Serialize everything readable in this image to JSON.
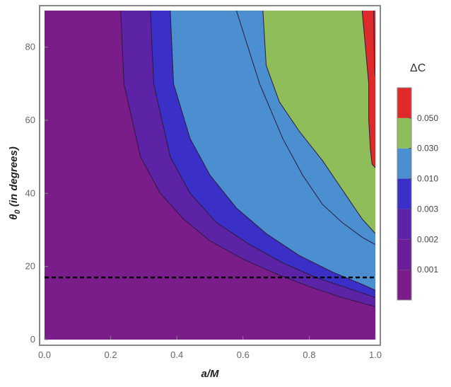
{
  "chart_data": {
    "type": "heatmap",
    "title": "",
    "xlabel": "a/M",
    "ylabel": "θ0 (in degrees)",
    "xlim": [
      0,
      1
    ],
    "ylim": [
      0,
      90
    ],
    "x_ticks": [
      "0.0",
      "0.2",
      "0.4",
      "0.6",
      "0.8",
      "1.0"
    ],
    "y_ticks": [
      "0",
      "20",
      "40",
      "60",
      "80"
    ],
    "legend": {
      "title": "ΔC",
      "placement": "right",
      "levels": [
        "0.001",
        "0.002",
        "0.003",
        "0.010",
        "0.030",
        "0.050"
      ],
      "band_colors": [
        "#7b1c8b",
        "#6a1d98",
        "#5d23a6",
        "#3a2fc6",
        "#4b8fd0",
        "#8fbd5a",
        "#de2a2a"
      ]
    },
    "reference_line": {
      "y": 17,
      "style": "dashed"
    },
    "contours": [
      {
        "level": "0.001",
        "points": [
          [
            0.58,
            90
          ],
          [
            0.65,
            70
          ],
          [
            0.72,
            55
          ],
          [
            0.78,
            45
          ],
          [
            0.84,
            37
          ],
          [
            0.9,
            32
          ],
          [
            0.96,
            28
          ],
          [
            1.0,
            26
          ]
        ]
      },
      {
        "level": "0.002",
        "points": [
          [
            0.23,
            90
          ],
          [
            0.24,
            70
          ],
          [
            0.29,
            50
          ],
          [
            0.35,
            40
          ],
          [
            0.42,
            33
          ],
          [
            0.5,
            27
          ],
          [
            0.6,
            22
          ],
          [
            0.7,
            18
          ],
          [
            0.8,
            14.5
          ],
          [
            0.9,
            11.5
          ],
          [
            1.0,
            9
          ]
        ]
      },
      {
        "level": "0.003",
        "points": [
          [
            0.32,
            90
          ],
          [
            0.33,
            70
          ],
          [
            0.38,
            50
          ],
          [
            0.44,
            40
          ],
          [
            0.52,
            32
          ],
          [
            0.62,
            26
          ],
          [
            0.72,
            21
          ],
          [
            0.82,
            17
          ],
          [
            0.92,
            14
          ],
          [
            1.0,
            11.5
          ]
        ]
      },
      {
        "level": "0.010",
        "points": [
          [
            0.38,
            90
          ],
          [
            0.39,
            70
          ],
          [
            0.44,
            55
          ],
          [
            0.5,
            45
          ],
          [
            0.58,
            36
          ],
          [
            0.67,
            29
          ],
          [
            0.77,
            23
          ],
          [
            0.87,
            18.5
          ],
          [
            0.95,
            15.5
          ],
          [
            1.0,
            13.5
          ]
        ]
      },
      {
        "level": "0.030",
        "points": [
          [
            0.66,
            90
          ],
          [
            0.67,
            75
          ],
          [
            0.71,
            65
          ],
          [
            0.77,
            57
          ],
          [
            0.84,
            49
          ],
          [
            0.9,
            41
          ],
          [
            0.96,
            33
          ],
          [
            1.0,
            29
          ]
        ]
      },
      {
        "level": "0.050",
        "points": [
          [
            0.96,
            90
          ],
          [
            0.97,
            80
          ],
          [
            0.98,
            70
          ],
          [
            0.98,
            60
          ],
          [
            0.985,
            52
          ],
          [
            0.99,
            48
          ],
          [
            1.0,
            47
          ]
        ]
      },
      {
        "level": "top",
        "points": [
          [
            0.995,
            90
          ],
          [
            0.997,
            75
          ],
          [
            1.0,
            72
          ]
        ]
      }
    ]
  }
}
